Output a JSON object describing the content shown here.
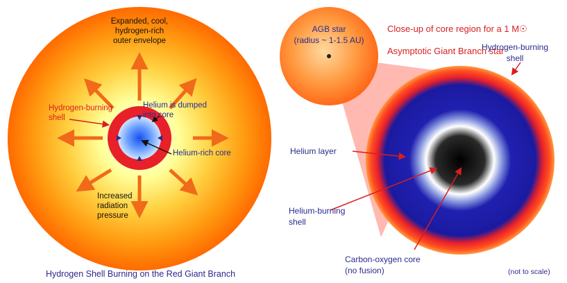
{
  "left_panel": {
    "caption": "Hydrogen Shell Burning on the Red Giant Branch",
    "labels": {
      "outer_envelope": "Expanded, cool,\nhydrogen-rich\nouter envelope",
      "hydrogen_shell": "Hydrogen-burning\nshell",
      "helium_dumped": "Helium is dumped\ninto core",
      "helium_core": "Helium-rich core",
      "radiation_pressure": "Increased\nradiation\npressure"
    }
  },
  "right_panel": {
    "agb_star": "AGB star\n(radius ~ 1-1.5 AU)",
    "title_line1": "Close-up of core region for a 1 M",
    "title_symbol": "☉",
    "title_line2": "Asymptotic Giant Branch star",
    "labels": {
      "hydrogen_shell": "Hydrogen-burning\nshell",
      "helium_layer": "Helium layer",
      "helium_burning": "Helium-burning\nshell",
      "carbon_core": "Carbon-oxygen core\n(no fusion)",
      "not_to_scale": "(not to scale)"
    }
  },
  "colors": {
    "envelope_outer": "#ff6a00",
    "envelope_mid": "#ffb020",
    "envelope_inner": "#ffff80",
    "hydrogen_shell": "#e8202a",
    "helium_core": "#2255ee",
    "helium_layer": "#1a1aa0",
    "carbon_core": "#000000",
    "arrow": "#f06a1a",
    "label_navy": "#2a2a8c",
    "label_red": "#d81e1e"
  }
}
